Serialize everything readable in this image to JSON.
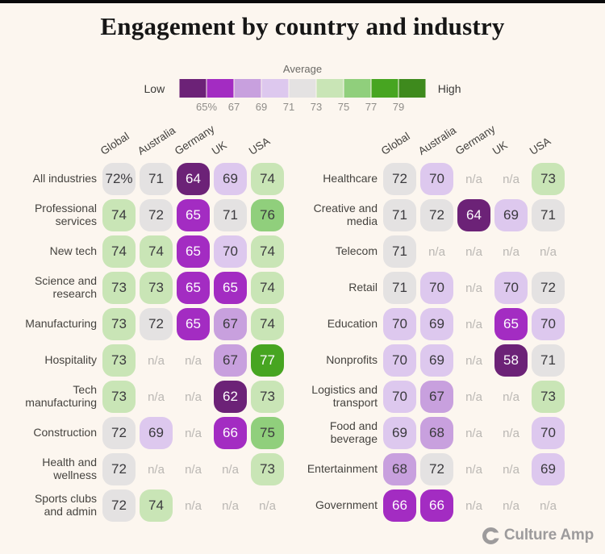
{
  "title": "Engagement by country and industry",
  "legend": {
    "title": "Average",
    "low_label": "Low",
    "high_label": "High",
    "ticks": [
      "65%",
      "67",
      "69",
      "71",
      "73",
      "75",
      "77",
      "79"
    ],
    "colors": [
      "#6c2277",
      "#a32cc2",
      "#c8a0de",
      "#ddc8ee",
      "#e4e2e2",
      "#c9e5b6",
      "#90cf7c",
      "#47a521",
      "#3e8a1d"
    ],
    "white_text_buckets": [
      0,
      1,
      7,
      8
    ]
  },
  "footer": {
    "brand": "Culture Amp"
  },
  "chart_data": {
    "type": "heatmap",
    "title": "Engagement by country and industry",
    "legend_title": "Average",
    "scale": {
      "low": "Low",
      "high": "High",
      "bucket_boundaries": [
        65,
        67,
        69,
        71,
        73,
        75,
        77,
        79
      ],
      "unit": "%"
    },
    "tables": [
      {
        "columns": [
          "Global",
          "Australia",
          "Germany",
          "UK",
          "USA"
        ],
        "rows": [
          {
            "label": "All industries",
            "values": [
              "72%",
              "71",
              "64",
              "69",
              "74"
            ]
          },
          {
            "label": "Professional services",
            "values": [
              "74",
              "72",
              "65",
              "71",
              "76"
            ]
          },
          {
            "label": "New tech",
            "values": [
              "74",
              "74",
              "65",
              "70",
              "74"
            ]
          },
          {
            "label": "Science and research",
            "values": [
              "73",
              "73",
              "65",
              "65",
              "74"
            ]
          },
          {
            "label": "Manufacturing",
            "values": [
              "73",
              "72",
              "65",
              "67",
              "74"
            ]
          },
          {
            "label": "Hospitality",
            "values": [
              "73",
              "n/a",
              "n/a",
              "67",
              "77"
            ]
          },
          {
            "label": "Tech manufacturing",
            "values": [
              "73",
              "n/a",
              "n/a",
              "62",
              "73"
            ]
          },
          {
            "label": "Construction",
            "values": [
              "72",
              "69",
              "n/a",
              "66",
              "75"
            ]
          },
          {
            "label": "Health and wellness",
            "values": [
              "72",
              "n/a",
              "n/a",
              "n/a",
              "73"
            ]
          },
          {
            "label": "Sports clubs and admin",
            "values": [
              "72",
              "74",
              "n/a",
              "n/a",
              "n/a"
            ]
          }
        ]
      },
      {
        "columns": [
          "Global",
          "Australia",
          "Germany",
          "UK",
          "USA"
        ],
        "rows": [
          {
            "label": "Healthcare",
            "values": [
              "72",
              "70",
              "n/a",
              "n/a",
              "73"
            ]
          },
          {
            "label": "Creative and media",
            "values": [
              "71",
              "72",
              "64",
              "69",
              "71"
            ]
          },
          {
            "label": "Telecom",
            "values": [
              "71",
              "n/a",
              "n/a",
              "n/a",
              "n/a"
            ]
          },
          {
            "label": "Retail",
            "values": [
              "71",
              "70",
              "n/a",
              "70",
              "72"
            ]
          },
          {
            "label": "Education",
            "values": [
              "70",
              "69",
              "n/a",
              "65",
              "70"
            ]
          },
          {
            "label": "Nonprofits",
            "values": [
              "70",
              "69",
              "n/a",
              "58",
              "71"
            ]
          },
          {
            "label": "Logistics and transport",
            "values": [
              "70",
              "67",
              "n/a",
              "n/a",
              "73"
            ]
          },
          {
            "label": "Food and beverage",
            "values": [
              "69",
              "68",
              "n/a",
              "n/a",
              "70"
            ]
          },
          {
            "label": "Entertainment",
            "values": [
              "68",
              "72",
              "n/a",
              "n/a",
              "69"
            ]
          },
          {
            "label": "Government",
            "values": [
              "66",
              "66",
              "n/a",
              "n/a",
              "n/a"
            ]
          }
        ]
      }
    ]
  }
}
